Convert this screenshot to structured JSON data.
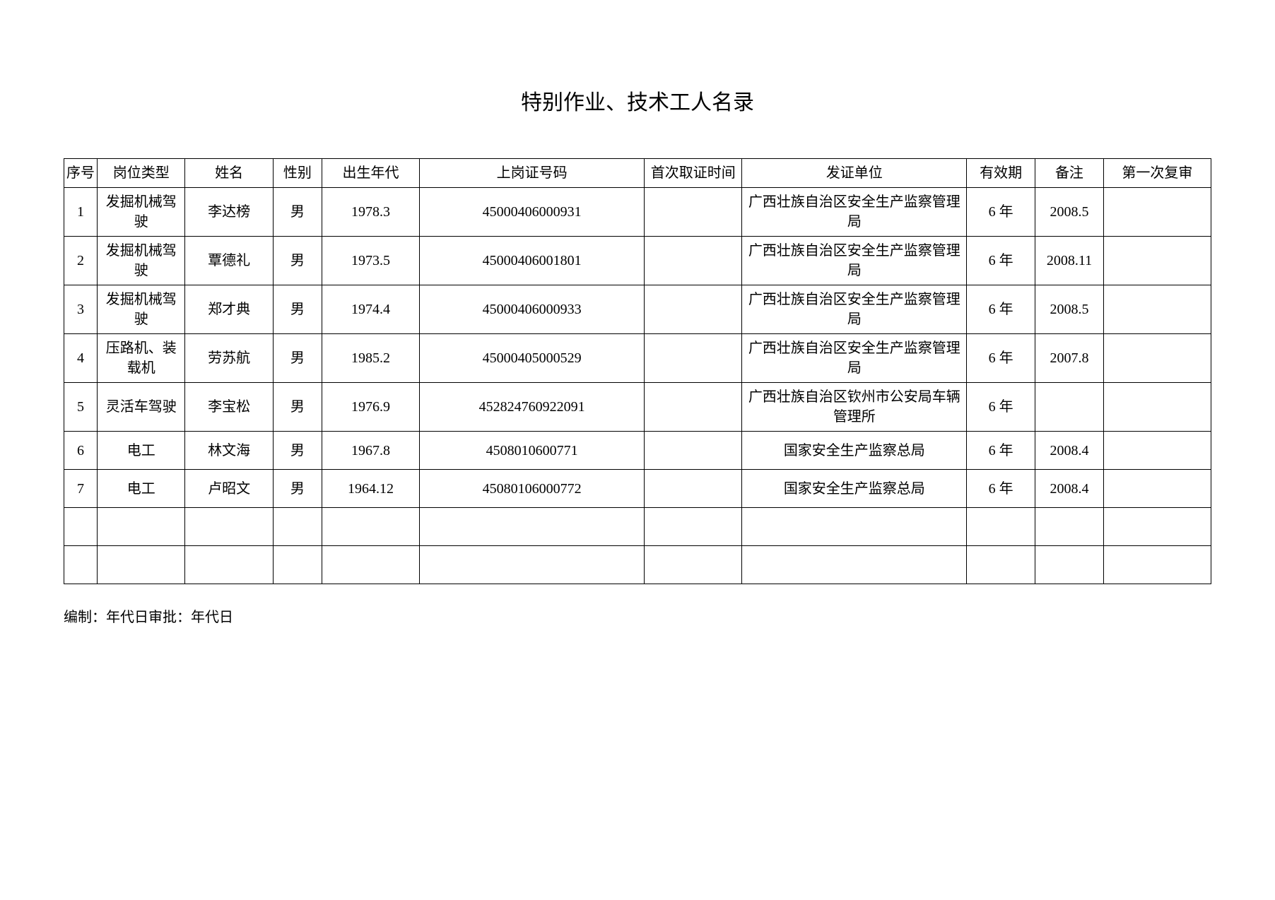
{
  "title": "特别作业、技术工人名录",
  "columns": {
    "seq": "序号",
    "job": "岗位类型",
    "name": "姓名",
    "sex": "性别",
    "birth": "出生年代",
    "cert": "上岗证号码",
    "first_time": "首次取证时间",
    "issuer": "发证单位",
    "valid": "有效期",
    "note": "备注",
    "review": "第一次复审"
  },
  "rows": [
    {
      "seq": "1",
      "job": "发掘机械驾驶",
      "name": "李达榜",
      "sex": "男",
      "birth": "1978.3",
      "cert": "45000406000931",
      "first": "",
      "issuer": "广西壮族自治区安全生产监察管理局",
      "valid": "6 年",
      "note": "2008.5",
      "review": ""
    },
    {
      "seq": "2",
      "job": "发掘机械驾驶",
      "name": "覃德礼",
      "sex": "男",
      "birth": "1973.5",
      "cert": "45000406001801",
      "first": "",
      "issuer": "广西壮族自治区安全生产监察管理局",
      "valid": "6 年",
      "note": "2008.11",
      "review": ""
    },
    {
      "seq": "3",
      "job": "发掘机械驾驶",
      "name": "郑才典",
      "sex": "男",
      "birth": "1974.4",
      "cert": "45000406000933",
      "first": "",
      "issuer": "广西壮族自治区安全生产监察管理局",
      "valid": "6 年",
      "note": "2008.5",
      "review": ""
    },
    {
      "seq": "4",
      "job": "压路机、装载机",
      "name": "劳苏航",
      "sex": "男",
      "birth": "1985.2",
      "cert": "45000405000529",
      "first": "",
      "issuer": "广西壮族自治区安全生产监察管理局",
      "valid": "6 年",
      "note": "2007.8",
      "review": ""
    },
    {
      "seq": "5",
      "job": "灵活车驾驶",
      "name": "李宝松",
      "sex": "男",
      "birth": "1976.9",
      "cert": "452824760922091",
      "first": "",
      "issuer": "广西壮族自治区钦州市公安局车辆管理所",
      "valid": "6 年",
      "note": "",
      "review": ""
    },
    {
      "seq": "6",
      "job": "电工",
      "name": "林文海",
      "sex": "男",
      "birth": "1967.8",
      "cert": "4508010600771",
      "first": "",
      "issuer": "国家安全生产监察总局",
      "valid": "6 年",
      "note": "2008.4",
      "review": ""
    },
    {
      "seq": "7",
      "job": "电工",
      "name": "卢昭文",
      "sex": "男",
      "birth": "1964.12",
      "cert": "45080106000772",
      "first": "",
      "issuer": "国家安全生产监察总局",
      "valid": "6 年",
      "note": "2008.4",
      "review": ""
    },
    {
      "seq": "",
      "job": "",
      "name": "",
      "sex": "",
      "birth": "",
      "cert": "",
      "first": "",
      "issuer": "",
      "valid": "",
      "note": "",
      "review": ""
    },
    {
      "seq": "",
      "job": "",
      "name": "",
      "sex": "",
      "birth": "",
      "cert": "",
      "first": "",
      "issuer": "",
      "valid": "",
      "note": "",
      "review": ""
    }
  ],
  "footer": "编制：年代日审批：年代日"
}
